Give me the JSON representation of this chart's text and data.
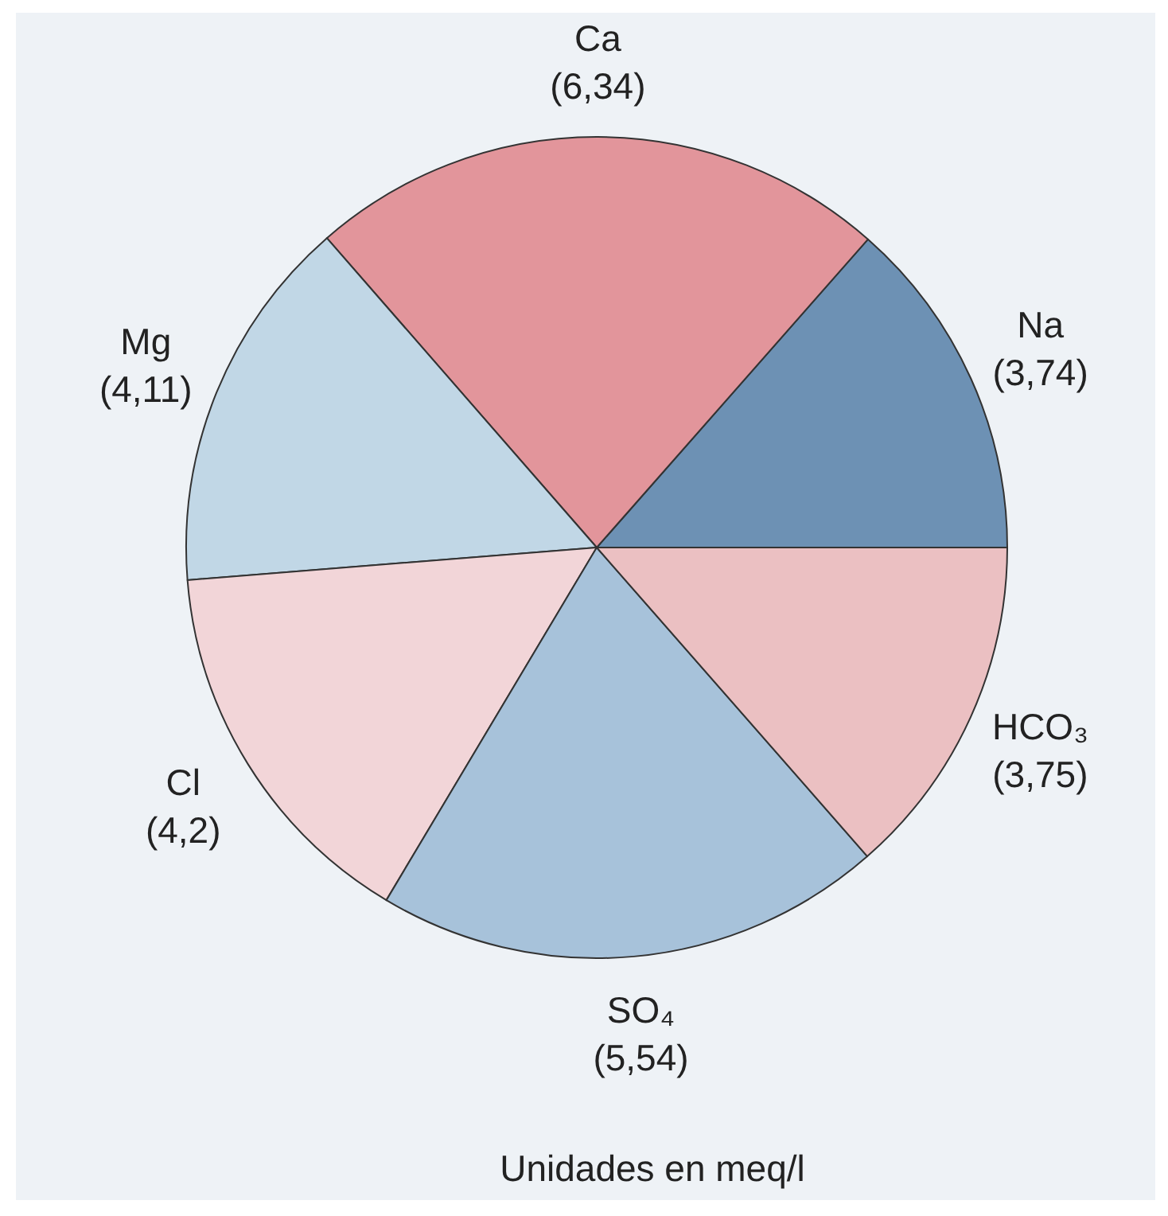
{
  "chart_data": {
    "type": "pie",
    "categories": [
      "Na",
      "Ca",
      "Mg",
      "Cl",
      "SO₄",
      "HCO₃"
    ],
    "values": [
      3.74,
      6.34,
      4.11,
      4.2,
      5.54,
      3.75
    ],
    "value_labels": [
      "(3,74)",
      "(6,34)",
      "(4,11)",
      "(4,2)",
      "(5,54)",
      "(3,75)"
    ],
    "colors": [
      "#6d91b4",
      "#e2959b",
      "#c1d7e6",
      "#f2d5d8",
      "#a7c2da",
      "#ebc0c2"
    ],
    "annotations": [
      "Unidades en meq/l"
    ],
    "legend": false
  }
}
